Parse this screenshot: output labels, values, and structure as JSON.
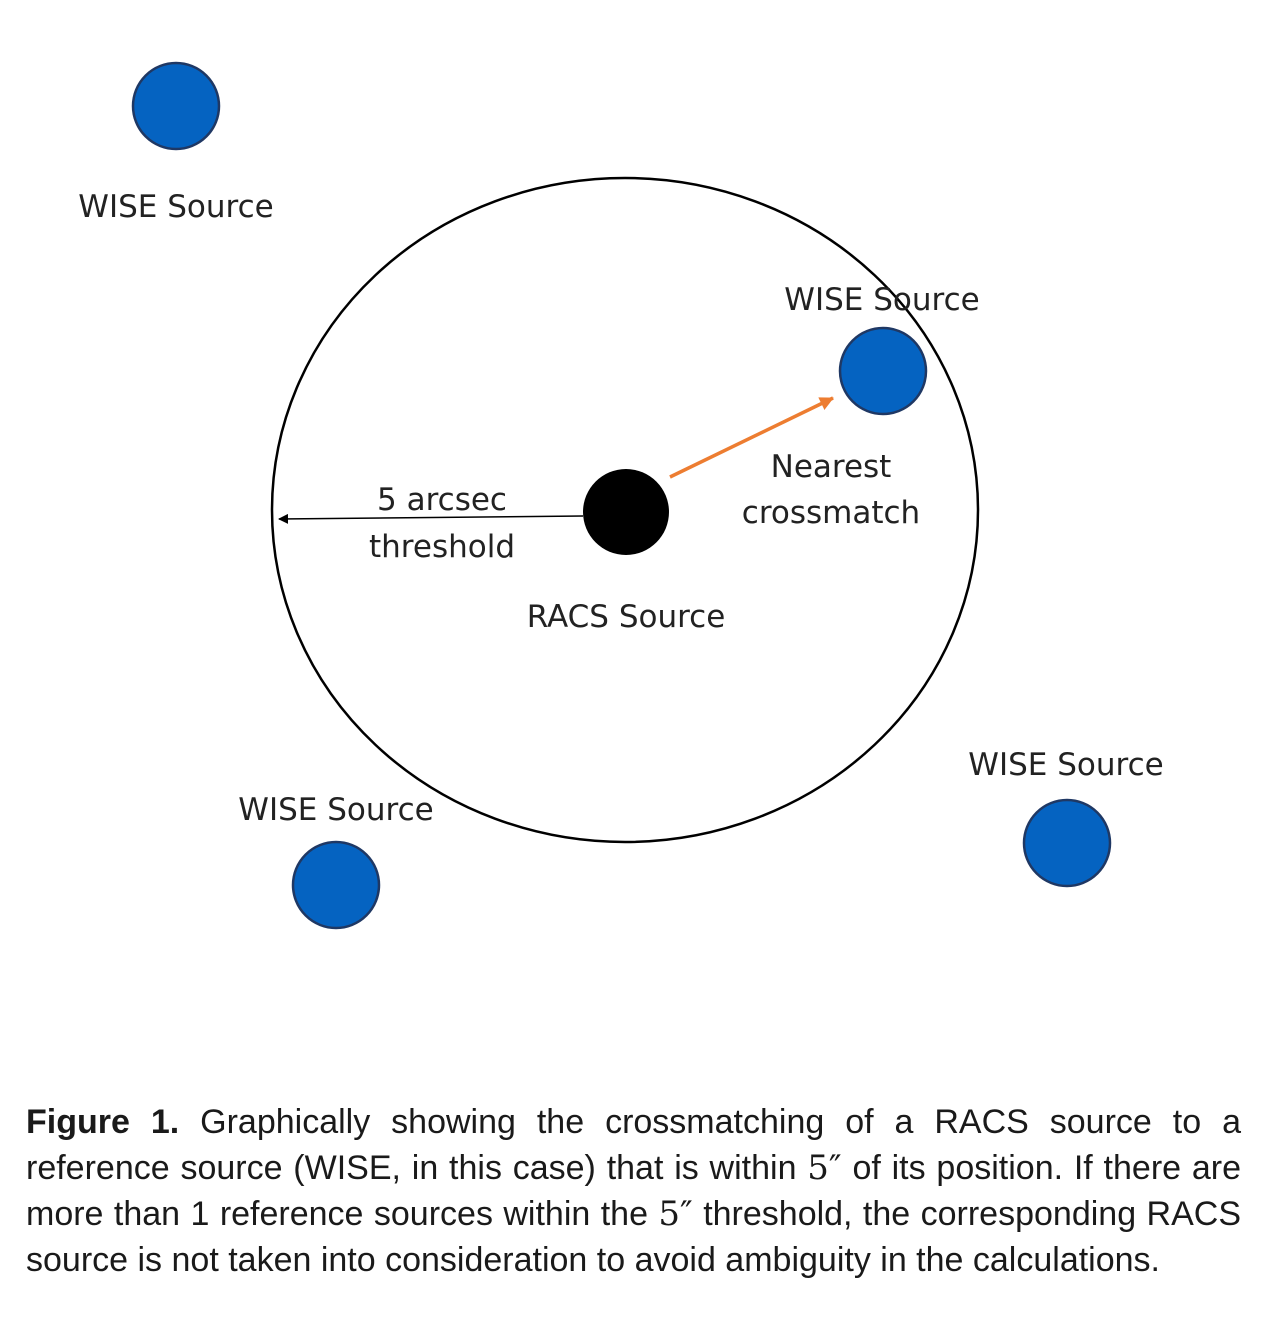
{
  "diagram": {
    "labels": {
      "wise_top_left": "WISE Source",
      "wise_inside": "WISE Source",
      "wise_bottom_left": "WISE Source",
      "wise_bottom_right": "WISE Source",
      "racs": "RACS Source",
      "threshold_line1": "5 arcsec",
      "threshold_line2": "threshold",
      "nearest_line1": "Nearest",
      "nearest_line2": "crossmatch"
    },
    "colors": {
      "wise_fill": "#0563C1",
      "wise_stroke": "#1F3864",
      "racs_fill": "#000000",
      "arrow_nearest": "#ED7D31",
      "arrow_threshold": "#000000"
    }
  },
  "caption": {
    "label": "Figure 1.",
    "part1": " Graphically showing the crossmatching of a RACS source to a reference source (WISE, in this case) that is within ",
    "math1": "5″",
    "part2": " of its position. If there are more than 1 reference sources within the ",
    "math2": "5″",
    "part3": " threshold, the corresponding RACS source is not taken into consideration to avoid ambiguity in the calculations."
  }
}
